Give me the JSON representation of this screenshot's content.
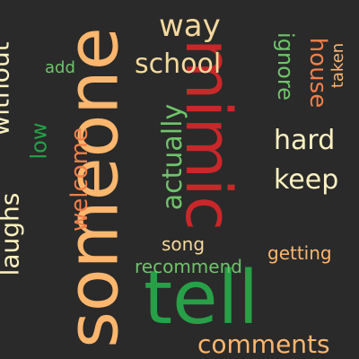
{
  "words": [
    {
      "key": "someone",
      "text": "someone",
      "color": "#fdb66e"
    },
    {
      "key": "mimic",
      "text": "mimic",
      "color": "#c9272a"
    },
    {
      "key": "tell",
      "text": "tell",
      "color": "#27a047"
    },
    {
      "key": "way",
      "text": "way",
      "color": "#f4d89d"
    },
    {
      "key": "school",
      "text": "school",
      "color": "#f4d89d"
    },
    {
      "key": "ignore",
      "text": "ignore",
      "color": "#6ec46a"
    },
    {
      "key": "house",
      "text": "house",
      "color": "#f17f4a"
    },
    {
      "key": "taken",
      "text": "taken",
      "color": "#fdb66e"
    },
    {
      "key": "add",
      "text": "add",
      "color": "#6ec46a"
    },
    {
      "key": "without",
      "text": "without",
      "color": "#fbf1c0"
    },
    {
      "key": "laughs",
      "text": "laughs",
      "color": "#fbf1c0"
    },
    {
      "key": "low",
      "text": "low",
      "color": "#27a047"
    },
    {
      "key": "welcome",
      "text": "welcome",
      "color": "#f17f4a"
    },
    {
      "key": "actually",
      "text": "actually",
      "color": "#6ec46a"
    },
    {
      "key": "hard",
      "text": "hard",
      "color": "#fbf1c0"
    },
    {
      "key": "keep",
      "text": "keep",
      "color": "#fbf1c0"
    },
    {
      "key": "song",
      "text": "song",
      "color": "#f4d89d"
    },
    {
      "key": "getting",
      "text": "getting",
      "color": "#fdb66e"
    },
    {
      "key": "recommend",
      "text": "recommend",
      "color": "#6ec46a"
    },
    {
      "key": "comments",
      "text": "comments",
      "color": "#fdb66e"
    }
  ]
}
